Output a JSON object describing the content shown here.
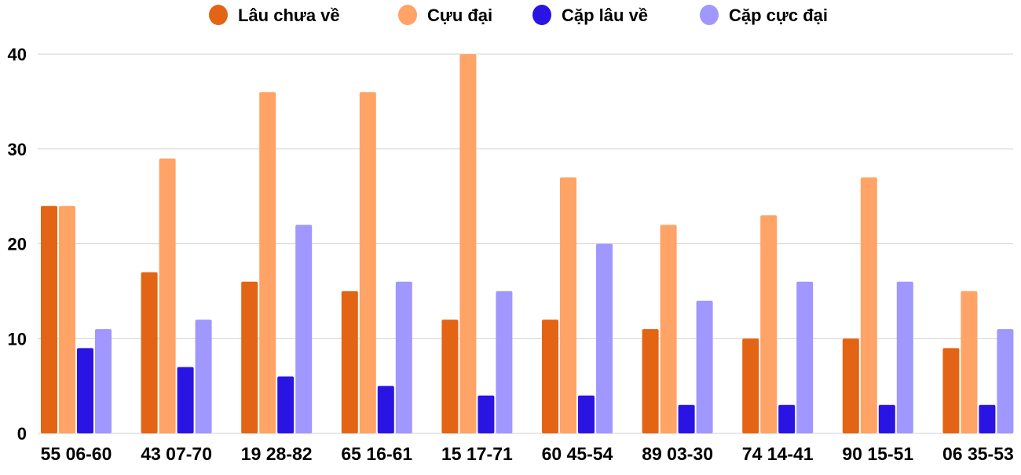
{
  "chart_data": {
    "type": "bar",
    "title": "",
    "xlabel": "",
    "ylabel": "",
    "ylim": [
      0,
      40
    ],
    "yticks": [
      0,
      10,
      20,
      30,
      40
    ],
    "grid": true,
    "legend_position": "top",
    "categories": [
      "55 06-60",
      "43 07-70",
      "19 28-82",
      "65 16-61",
      "15 17-71",
      "60 45-54",
      "89 03-30",
      "74 14-41",
      "90 15-51",
      "06 35-53"
    ],
    "series": [
      {
        "name": "Lâu chưa về",
        "color": "#e36414",
        "values": [
          24,
          17,
          16,
          15,
          12,
          12,
          11,
          10,
          10,
          9
        ]
      },
      {
        "name": "Cựu đại",
        "color": "#ffa366",
        "values": [
          24,
          29,
          36,
          36,
          40,
          27,
          22,
          23,
          27,
          15
        ]
      },
      {
        "name": "Cặp lâu về",
        "color": "#2a14e3",
        "values": [
          9,
          7,
          6,
          5,
          4,
          4,
          3,
          3,
          3,
          3
        ]
      },
      {
        "name": "Cặp cực đại",
        "color": "#a097ff",
        "values": [
          11,
          12,
          22,
          16,
          15,
          20,
          14,
          16,
          16,
          11
        ]
      }
    ]
  }
}
